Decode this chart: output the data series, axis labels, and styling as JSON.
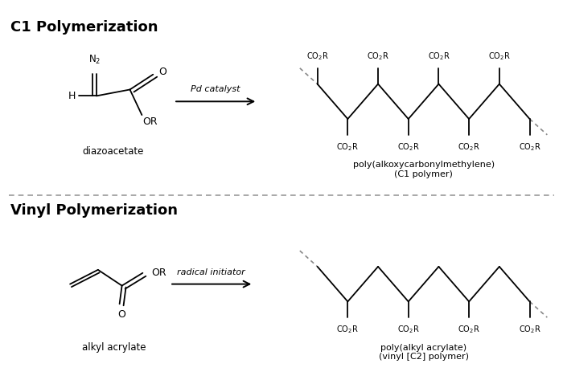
{
  "title_c1": "C1 Polymerization",
  "title_vinyl": "Vinyl Polymerization",
  "label_diazoacetate": "diazoacetate",
  "label_c1_product": "poly(alkoxycarbonylmethylene)\n(C1 polymer)",
  "label_alkyl_acrylate": "alkyl acrylate",
  "label_vinyl_product": "poly(alkyl acrylate)\n(vinyl [C2] polymer)",
  "arrow_c1_label": "Pd catalyst",
  "arrow_vinyl_label": "radical initiator",
  "bg_color": "#ffffff",
  "text_color": "#000000",
  "line_color": "#000000",
  "dashed_color": "#999999",
  "fig_width": 7.0,
  "fig_height": 4.73
}
